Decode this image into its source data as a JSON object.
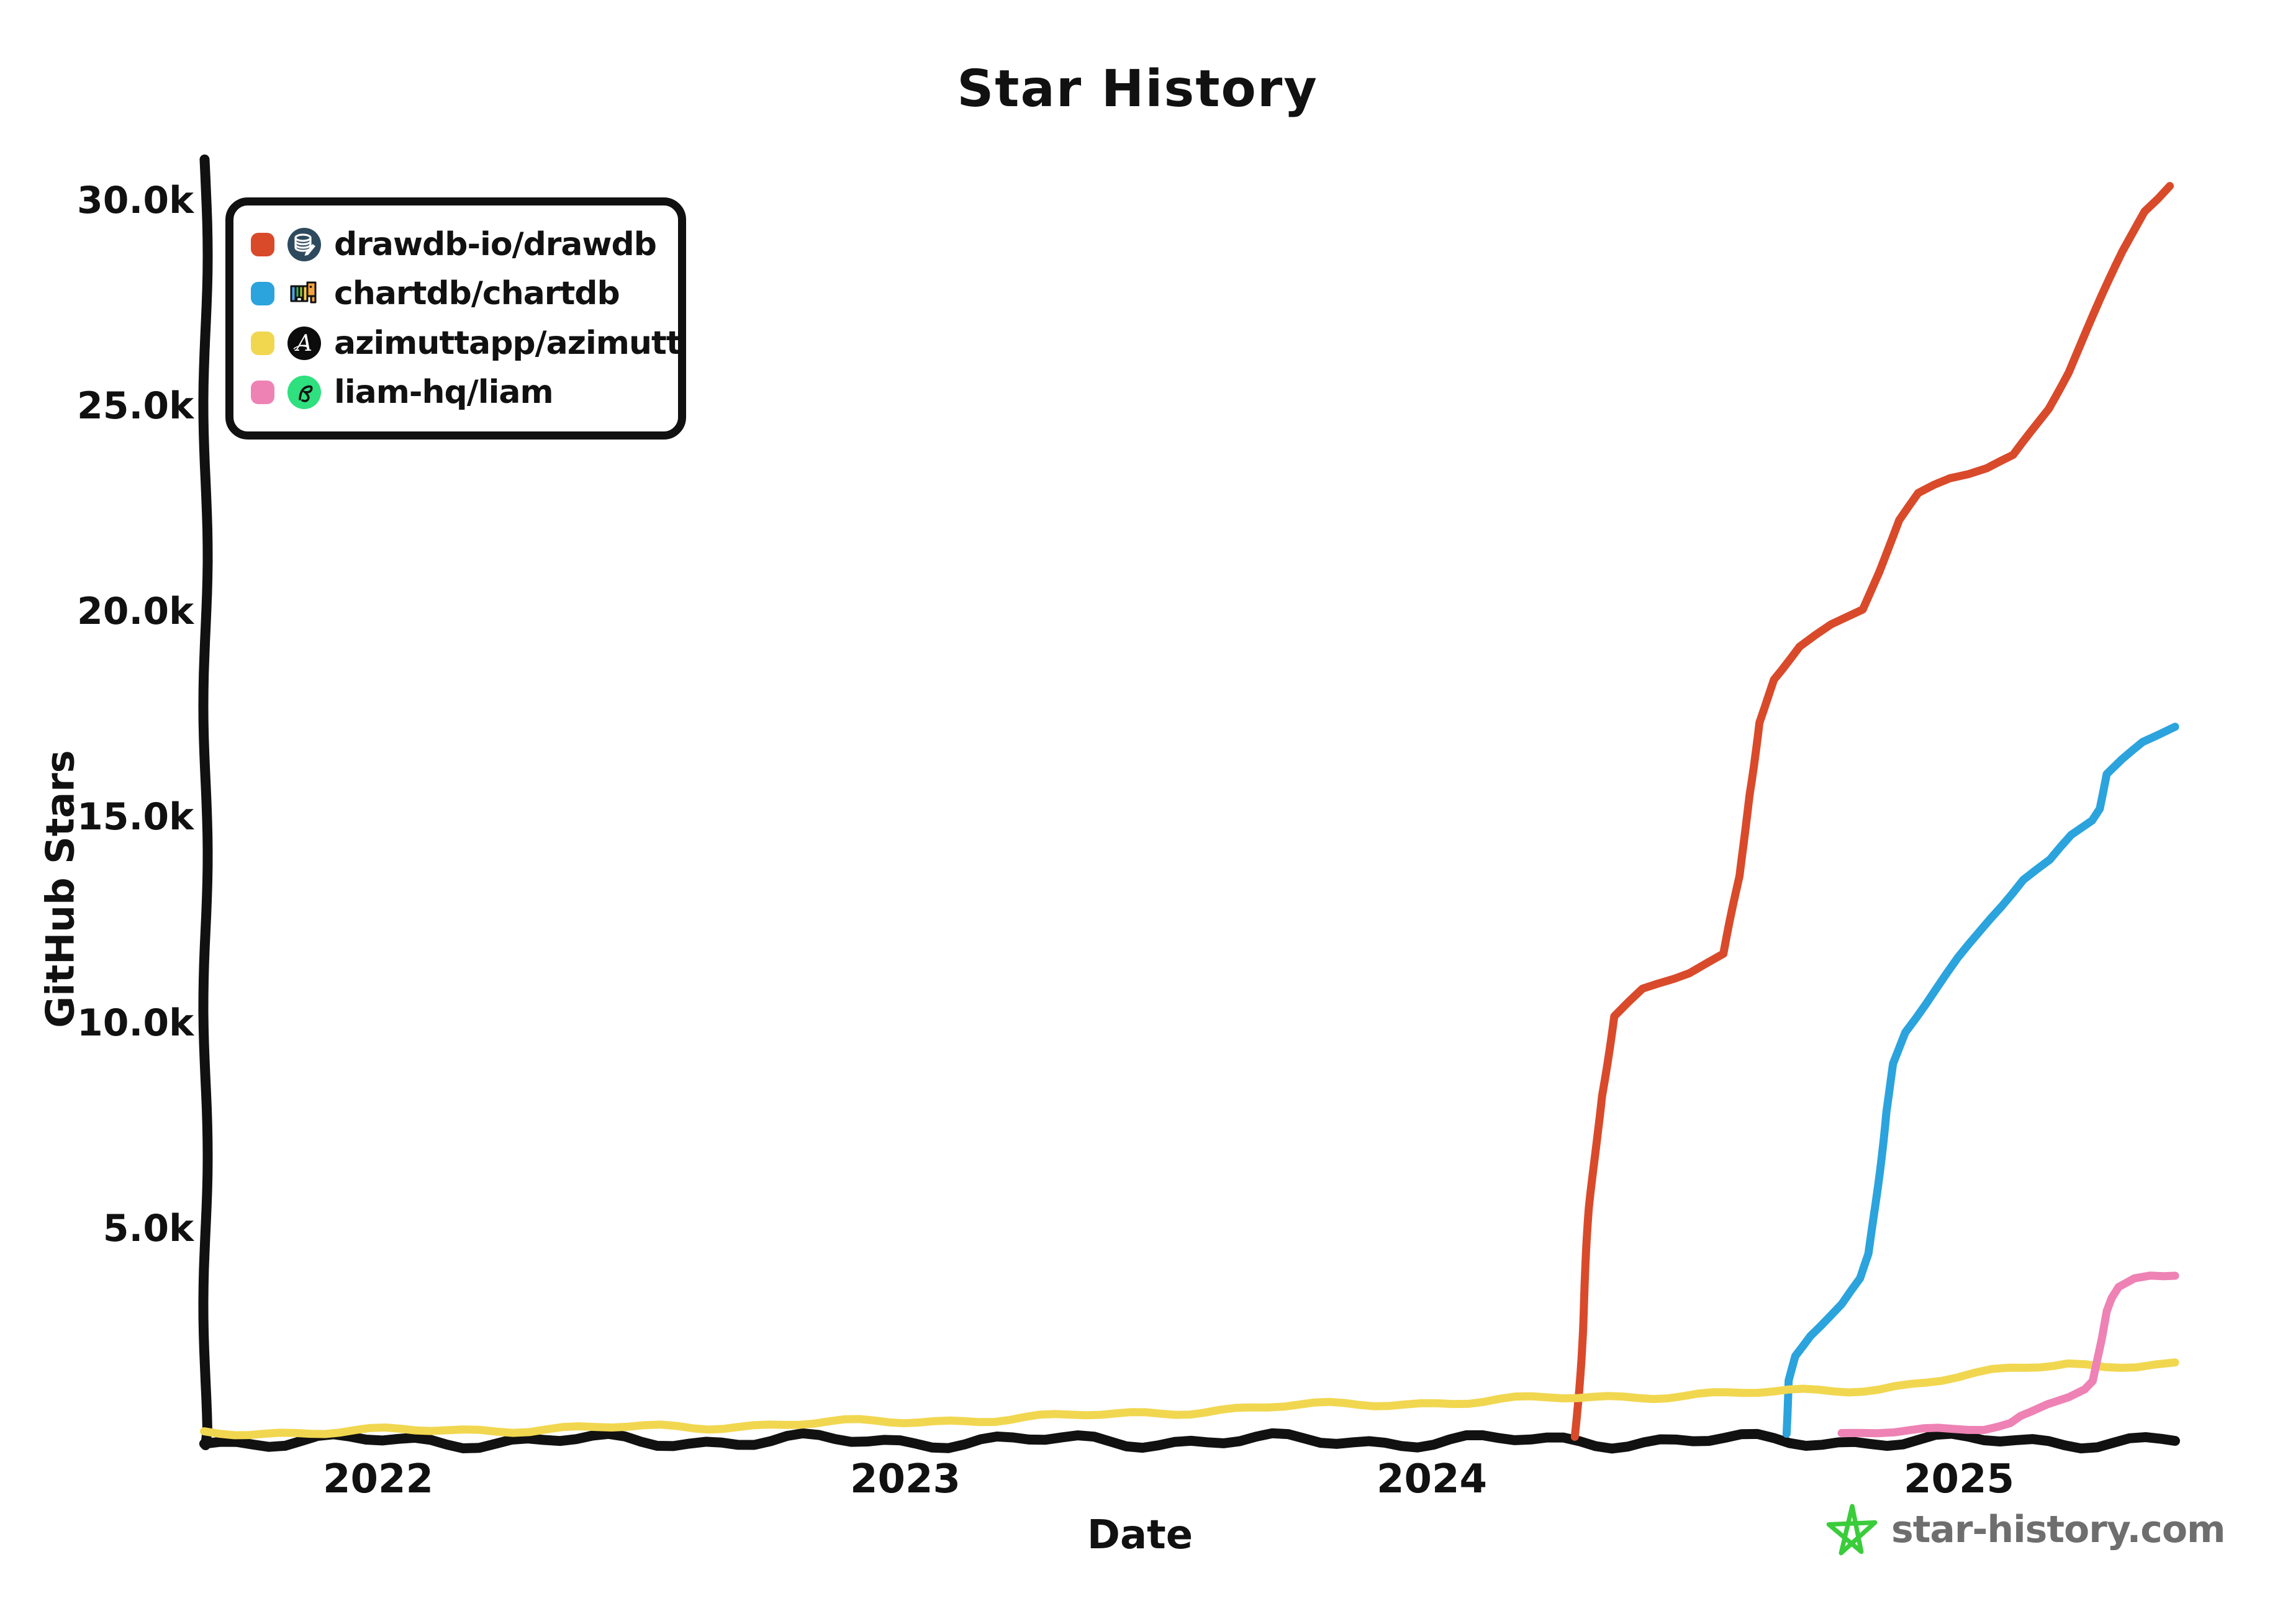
{
  "chart_data": {
    "type": "line",
    "title": "Star History",
    "xlabel": "Date",
    "ylabel": "GitHub Stars",
    "grid": false,
    "legend_position": "top-left",
    "x_range": [
      2021.67,
      2025.45
    ],
    "y_range": [
      0,
      30000
    ],
    "x_ticks": [
      {
        "label": "2022",
        "year": 2022
      },
      {
        "label": "2023",
        "year": 2023
      },
      {
        "label": "2024",
        "year": 2024
      },
      {
        "label": "2025",
        "year": 2025
      }
    ],
    "y_ticks": [
      {
        "label": "30.0k",
        "stars": 30000
      },
      {
        "label": "25.0k",
        "stars": 25000
      },
      {
        "label": "20.0k",
        "stars": 20000
      },
      {
        "label": "15.0k",
        "stars": 15000
      },
      {
        "label": "10.0k",
        "stars": 10000
      },
      {
        "label": "5.0k",
        "stars": 5000
      }
    ],
    "series": [
      {
        "name": "drawdb-io/drawdb",
        "color": "#d94a2b",
        "icon": "drawdb-logo-icon",
        "points": [
          [
            2024.27,
            0
          ],
          [
            2024.285,
            2600
          ],
          [
            2024.3,
            5600
          ],
          [
            2024.32,
            8300
          ],
          [
            2024.345,
            10200
          ],
          [
            2024.4,
            10800
          ],
          [
            2024.49,
            11200
          ],
          [
            2024.555,
            11600
          ],
          [
            2024.585,
            13500
          ],
          [
            2024.6,
            15500
          ],
          [
            2024.62,
            17300
          ],
          [
            2024.65,
            18400
          ],
          [
            2024.7,
            19200
          ],
          [
            2024.76,
            19700
          ],
          [
            2024.82,
            20100
          ],
          [
            2024.85,
            21000
          ],
          [
            2024.885,
            22200
          ],
          [
            2024.92,
            22800
          ],
          [
            2024.98,
            23200
          ],
          [
            2025.05,
            23500
          ],
          [
            2025.1,
            23800
          ],
          [
            2025.17,
            25000
          ],
          [
            2025.21,
            25900
          ],
          [
            2025.26,
            27300
          ],
          [
            2025.31,
            28700
          ],
          [
            2025.35,
            29700
          ],
          [
            2025.4,
            30350
          ]
        ]
      },
      {
        "name": "chartdb/chartdb",
        "color": "#2ba3dd",
        "icon": "chartdb-logo-icon",
        "points": [
          [
            2024.67,
            0
          ],
          [
            2024.676,
            1300
          ],
          [
            2024.69,
            1900
          ],
          [
            2024.72,
            2400
          ],
          [
            2024.78,
            3100
          ],
          [
            2024.815,
            3700
          ],
          [
            2024.83,
            4300
          ],
          [
            2024.845,
            6000
          ],
          [
            2024.86,
            7800
          ],
          [
            2024.875,
            9000
          ],
          [
            2024.9,
            9800
          ],
          [
            2024.94,
            10500
          ],
          [
            2025.0,
            11600
          ],
          [
            2025.06,
            12600
          ],
          [
            2025.12,
            13500
          ],
          [
            2025.17,
            13900
          ],
          [
            2025.21,
            14500
          ],
          [
            2025.25,
            14900
          ],
          [
            2025.265,
            15200
          ],
          [
            2025.28,
            16050
          ],
          [
            2025.31,
            16400
          ],
          [
            2025.35,
            16800
          ],
          [
            2025.41,
            17200
          ]
        ]
      },
      {
        "name": "azimuttapp/azimutt",
        "color": "#f1d750",
        "icon": "azimutt-logo-icon",
        "points": [
          [
            2021.67,
            30
          ],
          [
            2021.9,
            50
          ],
          [
            2022.1,
            90
          ],
          [
            2022.35,
            130
          ],
          [
            2022.6,
            180
          ],
          [
            2022.8,
            250
          ],
          [
            2023.0,
            300
          ],
          [
            2023.2,
            380
          ],
          [
            2023.4,
            470
          ],
          [
            2023.6,
            600
          ],
          [
            2023.75,
            680
          ],
          [
            2023.95,
            750
          ],
          [
            2024.1,
            800
          ],
          [
            2024.25,
            870
          ],
          [
            2024.45,
            950
          ],
          [
            2024.65,
            1000
          ],
          [
            2024.85,
            1120
          ],
          [
            2025.0,
            1380
          ],
          [
            2025.13,
            1600
          ],
          [
            2025.21,
            1730
          ],
          [
            2025.28,
            1660
          ],
          [
            2025.34,
            1700
          ],
          [
            2025.41,
            1740
          ]
        ]
      },
      {
        "name": "liam-hq/liam",
        "color": "#ee82b4",
        "icon": "liam-logo-icon",
        "points": [
          [
            2024.78,
            0
          ],
          [
            2024.88,
            30
          ],
          [
            2024.99,
            90
          ],
          [
            2025.05,
            160
          ],
          [
            2025.1,
            300
          ],
          [
            2025.12,
            460
          ],
          [
            2025.14,
            560
          ],
          [
            2025.17,
            750
          ],
          [
            2025.21,
            950
          ],
          [
            2025.24,
            1120
          ],
          [
            2025.255,
            1300
          ],
          [
            2025.27,
            2300
          ],
          [
            2025.278,
            2950
          ],
          [
            2025.287,
            3250
          ],
          [
            2025.3,
            3500
          ],
          [
            2025.33,
            3700
          ],
          [
            2025.36,
            3800
          ],
          [
            2025.41,
            3850
          ]
        ]
      }
    ]
  },
  "axes": {
    "color": "#111111"
  },
  "watermark": {
    "text": "star-history.com",
    "text_color": "#6e6e6e",
    "star_color": "#3bcc3b"
  }
}
